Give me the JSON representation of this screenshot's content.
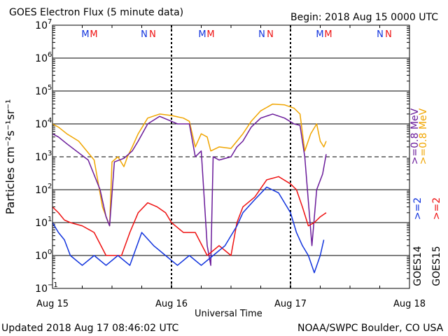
{
  "header": {
    "title": "GOES Electron Flux (5 minute data)",
    "begin": "Begin: 2018 Aug 15 0000 UTC"
  },
  "footer": {
    "updated": "Updated 2018 Aug 17 08:46:02 UTC",
    "credit": "NOAA/SWPC Boulder, CO USA"
  },
  "markers": [
    "M",
    "M",
    "N",
    "N",
    "M",
    "M",
    "N",
    "N",
    "M",
    "M",
    "N",
    "N"
  ],
  "colors": {
    "goes14_high": "#6a1b9a",
    "goes15_high": "#f0a500",
    "goes14_low": "#1133dd",
    "goes15_low": "#ee1111",
    "marker_blue": "#1133dd",
    "marker_red": "#ee1111"
  },
  "chart_data": {
    "type": "line",
    "title": "GOES Electron Flux (5 minute data)",
    "xlabel": "Universal Time",
    "ylabel": "Particles cm⁻²s⁻¹sr⁻¹",
    "x_tick_labels": [
      "Aug 15",
      "Aug 16",
      "Aug 17",
      "Aug 18"
    ],
    "x_units": "days since 2018 Aug 15 0000 UTC",
    "xlim": [
      0,
      3
    ],
    "y_scale": "log",
    "ylim": [
      0.1,
      10000000
    ],
    "y_tick_labels": [
      {
        "base": "10",
        "exp": "7"
      },
      {
        "base": "10",
        "exp": "6"
      },
      {
        "base": "10",
        "exp": "5"
      },
      {
        "base": "10",
        "exp": "4"
      },
      {
        "base": "10",
        "exp": "3"
      },
      {
        "base": "10",
        "exp": "2"
      },
      {
        "base": "10",
        "exp": "1"
      },
      {
        "base": "10",
        "exp": "0"
      },
      {
        "base": "10",
        "exp": "−1"
      }
    ],
    "threshold": 1000,
    "legend_right": [
      {
        "label": ">=0.8 MeV",
        "color": "#f0a500"
      },
      {
        "label": ">=0.8 MeV",
        "color": "#6a1b9a"
      },
      {
        "label": ">=2",
        "color": "#ee1111"
      },
      {
        "label": ">=2",
        "color": "#1133dd"
      },
      {
        "label": "GOES15",
        "color": "#000000"
      },
      {
        "label": "GOES14",
        "color": "#000000"
      }
    ],
    "series": [
      {
        "name": "GOES15 >=0.8 MeV",
        "color": "#f0a500",
        "x": [
          0,
          0.05,
          0.12,
          0.22,
          0.35,
          0.42,
          0.48,
          0.5,
          0.55,
          0.6,
          0.63,
          0.67,
          0.72,
          0.8,
          0.9,
          1.0,
          1.1,
          1.15,
          1.2,
          1.25,
          1.3,
          1.33,
          1.4,
          1.5,
          1.55,
          1.6,
          1.67,
          1.75,
          1.85,
          1.95,
          2.03,
          2.08,
          2.12,
          2.17,
          2.22,
          2.25,
          2.28,
          2.3
        ],
        "y": [
          10000,
          8000,
          5000,
          3000,
          800,
          30,
          8,
          700,
          1000,
          500,
          1000,
          2000,
          5000,
          15000,
          20000,
          18000,
          15000,
          12000,
          2000,
          5000,
          4000,
          1500,
          2000,
          1800,
          3000,
          5000,
          12000,
          25000,
          40000,
          38000,
          30000,
          20000,
          1500,
          5000,
          10000,
          3000,
          2000,
          3000
        ]
      },
      {
        "name": "GOES14 >=0.8 MeV",
        "color": "#6a1b9a",
        "x": [
          0,
          0.05,
          0.12,
          0.2,
          0.3,
          0.4,
          0.45,
          0.48,
          0.52,
          0.6,
          0.67,
          0.72,
          0.8,
          0.9,
          1.0,
          1.05,
          1.15,
          1.2,
          1.25,
          1.3,
          1.33,
          1.35,
          1.4,
          1.5,
          1.55,
          1.6,
          1.67,
          1.75,
          1.85,
          1.95,
          2.03,
          2.08,
          2.12,
          2.18,
          2.22,
          2.27,
          2.3
        ],
        "y": [
          5000,
          4000,
          2500,
          1500,
          800,
          100,
          15,
          8,
          700,
          900,
          1500,
          3000,
          10000,
          17000,
          12000,
          10000,
          10000,
          1000,
          1500,
          2,
          0.5,
          1000,
          800,
          1000,
          2000,
          3000,
          8000,
          15000,
          20000,
          15000,
          10000,
          9000,
          1000,
          2,
          100,
          300,
          1200
        ]
      },
      {
        "name": "GOES15 >=2",
        "color": "#ee1111",
        "x": [
          0,
          0.05,
          0.1,
          0.15,
          0.25,
          0.35,
          0.45,
          0.52,
          0.58,
          0.65,
          0.72,
          0.8,
          0.88,
          0.95,
          1.0,
          1.1,
          1.2,
          1.3,
          1.4,
          1.5,
          1.55,
          1.6,
          1.7,
          1.8,
          1.9,
          2.0,
          2.05,
          2.1,
          2.15,
          2.2,
          2.25,
          2.3
        ],
        "y": [
          30,
          20,
          12,
          10,
          8,
          5,
          1,
          1,
          1,
          5,
          20,
          40,
          30,
          20,
          10,
          5,
          5,
          1,
          2,
          1,
          10,
          30,
          60,
          200,
          250,
          150,
          100,
          30,
          8,
          10,
          15,
          20
        ]
      },
      {
        "name": "GOES14 >=2",
        "color": "#1133dd",
        "x": [
          0,
          0.05,
          0.1,
          0.15,
          0.25,
          0.35,
          0.45,
          0.55,
          0.65,
          0.75,
          0.85,
          0.95,
          1.05,
          1.15,
          1.25,
          1.35,
          1.45,
          1.55,
          1.6,
          1.7,
          1.8,
          1.9,
          2.0,
          2.05,
          2.1,
          2.15,
          2.2,
          2.25,
          2.28
        ],
        "y": [
          10,
          5,
          3,
          1,
          0.5,
          1,
          0.5,
          1,
          0.5,
          5,
          2,
          1,
          0.5,
          1,
          0.5,
          1,
          2,
          8,
          20,
          50,
          120,
          80,
          20,
          5,
          2,
          1,
          0.3,
          1,
          3
        ]
      }
    ]
  }
}
